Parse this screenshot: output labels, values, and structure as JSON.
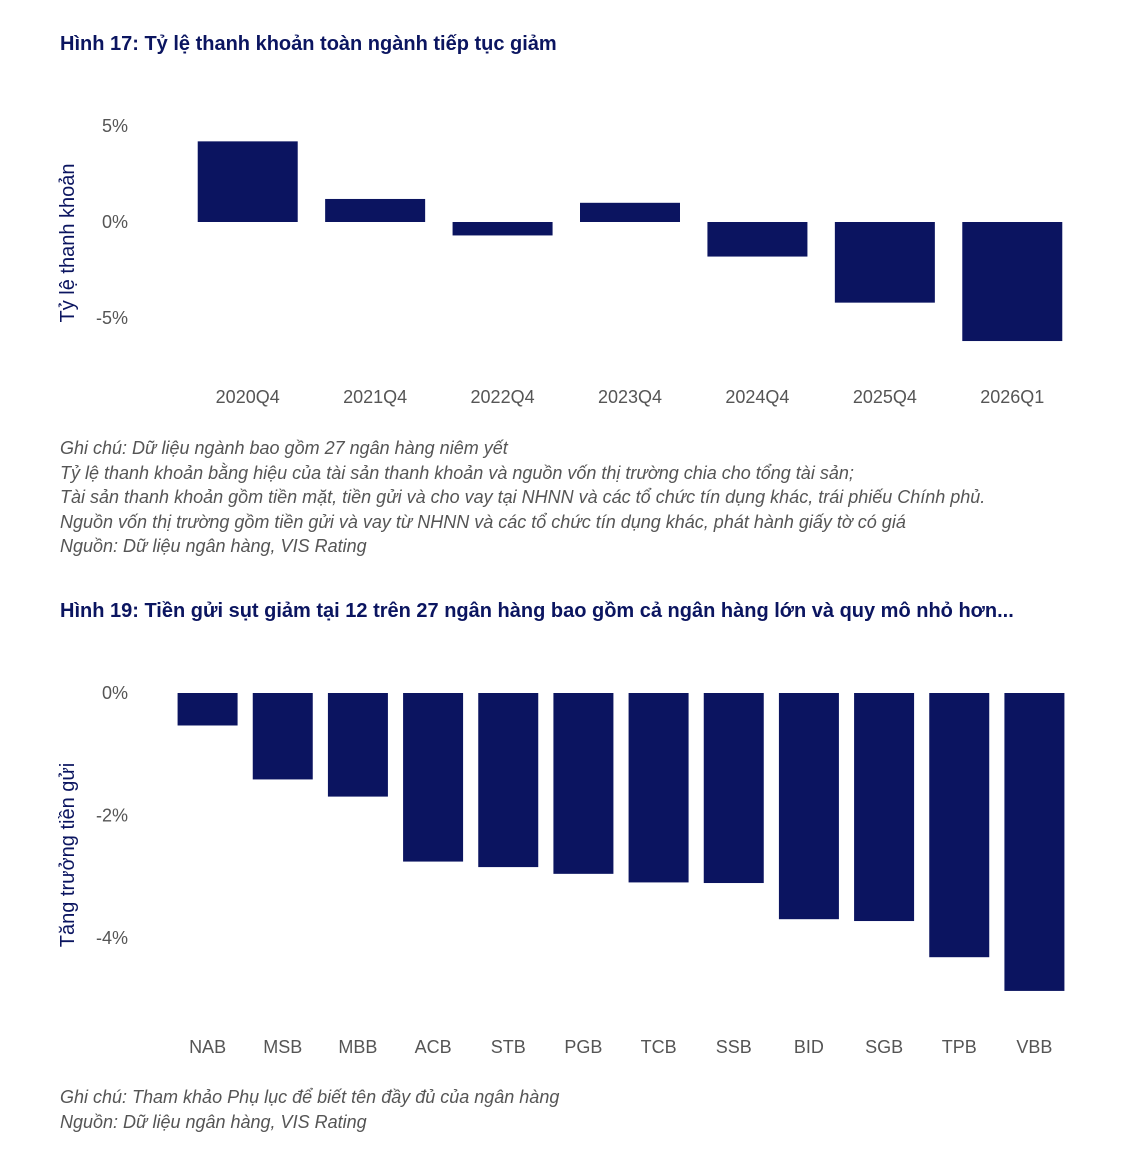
{
  "colors": {
    "bar": "#0b1460",
    "title": "#0b1560",
    "text": "#555555"
  },
  "figures": [
    {
      "title": "Hình 17: Tỷ lệ thanh khoản toàn ngành tiếp tục giảm",
      "notes": [
        "Ghi chú: Dữ liệu ngành bao gồm 27 ngân hàng niêm yết",
        "Tỷ lệ thanh khoản bằng hiệu của tài sản thanh khoản và nguồn vốn thị trường chia cho tổng tài sản;",
        "Tài sản thanh khoản gồm tiền mặt, tiền gửi và cho vay tại NHNN và các tổ chức tín dụng khác, trái phiếu Chính phủ.",
        "Nguồn vốn thị trường gồm tiền gửi và vay từ NHNN và các tổ chức tín dụng khác, phát hành giấy tờ có giá",
        "Nguồn: Dữ liệu ngân hàng, VIS Rating"
      ]
    },
    {
      "title": "Hình 19: Tiền gửi sụt giảm tại 12 trên 27 ngân hàng bao gồm cả ngân hàng lớn và quy mô nhỏ hơn...",
      "notes": [
        "Ghi chú: Tham khảo Phụ lục để biết tên đầy đủ của ngân hàng",
        "Nguồn: Dữ liệu ngân hàng, VIS Rating"
      ]
    }
  ],
  "chart_data": [
    {
      "type": "bar",
      "title": "Hình 17: Tỷ lệ thanh khoản toàn ngành tiếp tục giảm",
      "xlabel": "",
      "ylabel": "Tỷ lệ thanh khoản",
      "categories": [
        "2020Q4",
        "2021Q4",
        "2022Q4",
        "2023Q4",
        "2024Q4",
        "2025Q4",
        "2026Q1"
      ],
      "values": [
        4.2,
        1.2,
        -0.7,
        1.0,
        -1.8,
        -4.2,
        -6.2
      ],
      "ylim": [
        -6.2,
        5
      ],
      "yticks": [
        5,
        0,
        -5
      ],
      "ytick_labels": [
        "5%",
        "0%",
        "-5%"
      ],
      "grid": false,
      "legend": "none"
    },
    {
      "type": "bar",
      "title": "Hình 19: Tiền gửi sụt giảm tại 12 trên 27 ngân hàng bao gồm cả ngân hàng lớn và quy mô nhỏ hơn...",
      "xlabel": "",
      "ylabel": "Tăng trưởng tiền gửi",
      "categories": [
        "NAB",
        "MSB",
        "MBB",
        "ACB",
        "STB",
        "PGB",
        "TCB",
        "SSB",
        "BID",
        "SGB",
        "TPB",
        "VBB"
      ],
      "values": [
        -0.53,
        -1.41,
        -1.69,
        -2.75,
        -2.84,
        -2.95,
        -3.09,
        -3.1,
        -3.69,
        -3.72,
        -4.31,
        -4.86
      ],
      "ylim": [
        -4.86,
        0
      ],
      "yticks": [
        0,
        -2,
        -4
      ],
      "ytick_labels": [
        "0%",
        "-2%",
        "-4%"
      ],
      "grid": false,
      "legend": "none"
    }
  ]
}
